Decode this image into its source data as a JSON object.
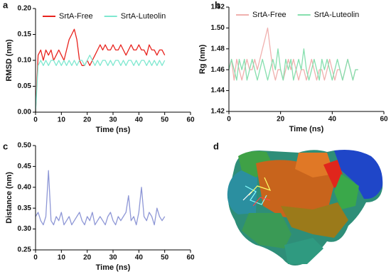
{
  "chart_data": [
    {
      "type": "line",
      "panel": "a",
      "xlabel": "Time (ns)",
      "ylabel": "RMSD (nm)",
      "x": [
        0,
        1,
        2,
        3,
        4,
        5,
        6,
        7,
        8,
        9,
        10,
        11,
        12,
        13,
        14,
        15,
        16,
        17,
        18,
        19,
        20,
        21,
        22,
        23,
        24,
        25,
        26,
        27,
        28,
        29,
        30,
        31,
        32,
        33,
        34,
        35,
        36,
        37,
        38,
        39,
        40,
        41,
        42,
        43,
        44,
        45,
        46,
        47,
        48,
        49,
        50
      ],
      "series": [
        {
          "name": "SrtA-Free",
          "color": "#e8231e",
          "values": [
            0,
            0.11,
            0.12,
            0.1,
            0.12,
            0.11,
            0.12,
            0.1,
            0.11,
            0.12,
            0.11,
            0.1,
            0.12,
            0.14,
            0.15,
            0.16,
            0.14,
            0.1,
            0.09,
            0.09,
            0.1,
            0.09,
            0.1,
            0.11,
            0.12,
            0.13,
            0.12,
            0.13,
            0.12,
            0.12,
            0.13,
            0.12,
            0.12,
            0.13,
            0.12,
            0.11,
            0.12,
            0.13,
            0.12,
            0.12,
            0.13,
            0.12,
            0.12,
            0.11,
            0.13,
            0.12,
            0.12,
            0.11,
            0.12,
            0.12,
            0.11
          ]
        },
        {
          "name": "SrtA-Luteolin",
          "color": "#7fe8d0",
          "values": [
            0,
            0.09,
            0.1,
            0.09,
            0.1,
            0.09,
            0.1,
            0.1,
            0.09,
            0.1,
            0.09,
            0.1,
            0.09,
            0.1,
            0.09,
            0.1,
            0.09,
            0.1,
            0.1,
            0.09,
            0.1,
            0.11,
            0.1,
            0.09,
            0.1,
            0.09,
            0.1,
            0.1,
            0.09,
            0.1,
            0.09,
            0.1,
            0.1,
            0.09,
            0.1,
            0.09,
            0.1,
            0.1,
            0.09,
            0.1,
            0.09,
            0.1,
            0.1,
            0.09,
            0.1,
            0.09,
            0.1,
            0.09,
            0.1,
            0.09,
            0.1
          ]
        }
      ],
      "xlim": [
        0,
        60
      ],
      "xticks": [
        0,
        10,
        20,
        30,
        40,
        50,
        60
      ],
      "ylim": [
        0,
        0.2
      ],
      "yticks": [
        {
          "value": 0,
          "label": "0.00"
        },
        0.05,
        {
          "value": 0.1,
          "label": "0.10"
        },
        0.15,
        {
          "value": 0.2,
          "label": "0.20"
        }
      ],
      "legend": "top"
    },
    {
      "type": "line",
      "panel": "b",
      "xlabel": "Time (ns)",
      "ylabel": "Rg (nm)",
      "x": [
        0,
        1,
        2,
        3,
        4,
        5,
        6,
        7,
        8,
        9,
        10,
        11,
        12,
        13,
        14,
        15,
        16,
        17,
        18,
        19,
        20,
        21,
        22,
        23,
        24,
        25,
        26,
        27,
        28,
        29,
        30,
        31,
        32,
        33,
        34,
        35,
        36,
        37,
        38,
        39,
        40,
        41,
        42,
        43,
        44,
        45,
        46,
        47,
        48,
        49,
        50
      ],
      "series": [
        {
          "name": "SrtA-Free",
          "color": "#f0b0ae",
          "values": [
            1.46,
            1.47,
            1.45,
            1.47,
            1.46,
            1.45,
            1.46,
            1.47,
            1.46,
            1.46,
            1.47,
            1.46,
            1.47,
            1.48,
            1.49,
            1.5,
            1.48,
            1.46,
            1.45,
            1.46,
            1.46,
            1.45,
            1.46,
            1.47,
            1.46,
            1.47,
            1.46,
            1.45,
            1.46,
            1.46,
            1.45,
            1.46,
            1.47,
            1.46,
            1.45,
            1.46,
            1.46,
            1.45,
            1.46,
            1.47,
            1.46,
            1.45,
            1.46,
            1.46,
            1.45,
            1.46,
            1.47,
            1.46,
            1.45,
            1.46,
            1.46
          ]
        },
        {
          "name": "SrtA-Luteolin",
          "color": "#86dfae",
          "values": [
            1.46,
            1.47,
            1.46,
            1.45,
            1.47,
            1.46,
            1.47,
            1.45,
            1.46,
            1.47,
            1.46,
            1.45,
            1.46,
            1.47,
            1.46,
            1.45,
            1.46,
            1.47,
            1.46,
            1.48,
            1.46,
            1.45,
            1.47,
            1.46,
            1.47,
            1.45,
            1.46,
            1.47,
            1.46,
            1.48,
            1.46,
            1.45,
            1.46,
            1.47,
            1.46,
            1.45,
            1.47,
            1.46,
            1.47,
            1.46,
            1.45,
            1.46,
            1.47,
            1.46,
            1.45,
            1.46,
            1.47,
            1.46,
            1.45,
            1.46,
            1.46
          ]
        }
      ],
      "xlim": [
        0,
        60
      ],
      "xticks": [
        0,
        20,
        40,
        60
      ],
      "ylim": [
        1.42,
        1.52
      ],
      "yticks": [
        1.42,
        1.44,
        1.46,
        1.48,
        {
          "value": 1.5,
          "label": "1.50"
        },
        1.52
      ],
      "legend": "top"
    },
    {
      "type": "line",
      "panel": "c",
      "xlabel": "Time (ns)",
      "ylabel": "Distance (nm)",
      "x": [
        0,
        1,
        2,
        3,
        4,
        5,
        6,
        7,
        8,
        9,
        10,
        11,
        12,
        13,
        14,
        15,
        16,
        17,
        18,
        19,
        20,
        21,
        22,
        23,
        24,
        25,
        26,
        27,
        28,
        29,
        30,
        31,
        32,
        33,
        34,
        35,
        36,
        37,
        38,
        39,
        40,
        41,
        42,
        43,
        44,
        45,
        46,
        47,
        48,
        49,
        50
      ],
      "series": [
        {
          "color": "#8e97d6",
          "values": [
            0.33,
            0.34,
            0.32,
            0.31,
            0.33,
            0.44,
            0.32,
            0.31,
            0.33,
            0.32,
            0.34,
            0.31,
            0.32,
            0.33,
            0.31,
            0.32,
            0.33,
            0.34,
            0.32,
            0.31,
            0.33,
            0.32,
            0.34,
            0.31,
            0.32,
            0.33,
            0.32,
            0.31,
            0.33,
            0.34,
            0.32,
            0.31,
            0.33,
            0.32,
            0.33,
            0.34,
            0.38,
            0.32,
            0.33,
            0.31,
            0.34,
            0.4,
            0.33,
            0.32,
            0.34,
            0.33,
            0.31,
            0.35,
            0.33,
            0.32,
            0.33
          ]
        }
      ],
      "xlim": [
        0,
        60
      ],
      "xticks": [
        0,
        10,
        20,
        30,
        40,
        50,
        60
      ],
      "ylim": [
        0.25,
        0.5
      ],
      "yticks": [
        0.25,
        {
          "value": 0.3,
          "label": "0.30"
        },
        0.35,
        {
          "value": 0.4,
          "label": "0.40"
        },
        0.45,
        {
          "value": 0.5,
          "label": "0.50"
        }
      ]
    }
  ],
  "image_panel": {
    "label": "d"
  }
}
